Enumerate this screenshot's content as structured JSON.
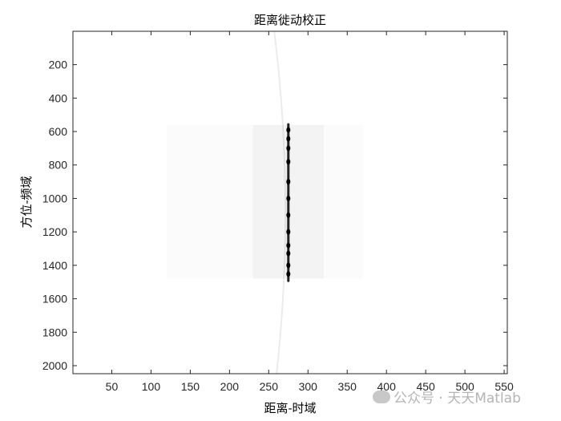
{
  "chart_data": {
    "type": "heatmap",
    "title": "距离徙动校正",
    "xlabel": "距离-时域",
    "ylabel": "方位-频域",
    "xlim": [
      0.5,
      554
    ],
    "ylim": [
      0.5,
      2048
    ],
    "y_reversed": true,
    "colormap": "gray (inverted, dark = high)",
    "xticks": [
      50,
      100,
      150,
      200,
      250,
      300,
      350,
      400,
      450,
      500,
      550
    ],
    "yticks": [
      200,
      400,
      600,
      800,
      1000,
      1200,
      1400,
      1600,
      1800,
      2000
    ],
    "grid": false,
    "features": {
      "target_line": {
        "x": 275,
        "y_start": 550,
        "y_end": 1500
      },
      "faint_curve": {
        "top": [
          257,
          0
        ],
        "middle": [
          275,
          1024
        ],
        "bottom": [
          260,
          2048
        ]
      },
      "sidelobe_region": {
        "x": [
          120,
          370
        ],
        "y": [
          560,
          1480
        ]
      },
      "bright_spots_y": [
        590,
        643,
        700,
        781,
        900,
        1000,
        1100,
        1200,
        1281,
        1329,
        1400,
        1452
      ]
    }
  },
  "watermark": "公众号 · 天天Matlab",
  "colors": {
    "axis": "#262626",
    "background": "#ffffff",
    "mark": "#000000"
  }
}
